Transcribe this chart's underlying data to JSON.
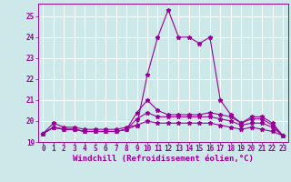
{
  "xlabel": "Windchill (Refroidissement éolien,°C)",
  "ylabel": "",
  "bg_color": "#cce8e8",
  "grid_color": "#ffffff",
  "line_color": "#990099",
  "xlim": [
    -0.5,
    23.5
  ],
  "ylim": [
    19,
    25.6
  ],
  "yticks": [
    19,
    20,
    21,
    22,
    23,
    24,
    25
  ],
  "xticks": [
    0,
    1,
    2,
    3,
    4,
    5,
    6,
    7,
    8,
    9,
    10,
    11,
    12,
    13,
    14,
    15,
    16,
    17,
    18,
    19,
    20,
    21,
    22,
    23
  ],
  "series": [
    [
      19.4,
      19.9,
      19.7,
      19.7,
      19.6,
      19.6,
      19.6,
      19.6,
      19.7,
      19.8,
      22.2,
      24.0,
      25.3,
      24.0,
      24.0,
      23.7,
      24.0,
      21.0,
      20.3,
      19.9,
      20.2,
      20.2,
      19.9,
      19.3
    ],
    [
      19.4,
      19.7,
      19.6,
      19.6,
      19.5,
      19.5,
      19.5,
      19.5,
      19.6,
      20.4,
      21.0,
      20.5,
      20.3,
      20.3,
      20.3,
      20.3,
      20.4,
      20.3,
      20.2,
      19.9,
      20.1,
      20.1,
      19.8,
      19.3
    ],
    [
      19.4,
      19.7,
      19.6,
      19.6,
      19.5,
      19.5,
      19.5,
      19.5,
      19.6,
      20.1,
      20.4,
      20.2,
      20.2,
      20.2,
      20.2,
      20.2,
      20.2,
      20.1,
      20.0,
      19.8,
      19.9,
      19.9,
      19.7,
      19.3
    ],
    [
      19.4,
      19.7,
      19.6,
      19.6,
      19.5,
      19.5,
      19.5,
      19.5,
      19.6,
      19.8,
      20.0,
      19.9,
      19.9,
      19.9,
      19.9,
      19.9,
      19.9,
      19.8,
      19.7,
      19.6,
      19.7,
      19.6,
      19.5,
      19.3
    ]
  ],
  "marker": "*",
  "markersize": 3.5,
  "linewidth": 0.8,
  "xlabel_fontsize": 6.5,
  "tick_fontsize": 5.5
}
